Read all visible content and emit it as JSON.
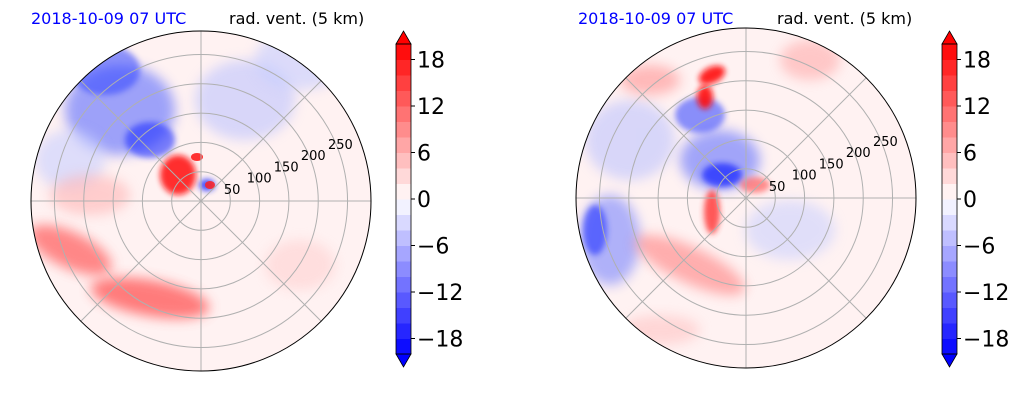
{
  "figure": {
    "panels": [
      {
        "time_label": "2018-10-09 07 UTC",
        "field_label": "rad. vent. (5 km)",
        "colorbar_ticks": [
          "18",
          "12",
          "6",
          "0",
          "−6",
          "−12",
          "−18"
        ]
      },
      {
        "time_label": "2018-10-09 07 UTC",
        "field_label": "rad. vent. (5 km)",
        "colorbar_ticks": [
          "18",
          "12",
          "6",
          "0",
          "−6",
          "−12",
          "−18"
        ]
      }
    ]
  },
  "colors": {
    "time_label": "#0000ff",
    "positive": "#ff0000",
    "negative": "#0000ff",
    "neutral": "#ffffff",
    "grid": "#b0b0b0"
  },
  "chart_data": [
    {
      "type": "heatmap",
      "projection": "polar",
      "title_left": "2018-10-09 07 UTC",
      "title_right": "rad. vent. (5 km)",
      "radial_ticks": [
        50,
        100,
        150,
        200,
        250
      ],
      "radial_max": 290,
      "angular_gridlines_deg": [
        0,
        45,
        90,
        135,
        180,
        225,
        270,
        315
      ],
      "colorbar": {
        "min": -20,
        "max": 20,
        "levels_step": 2,
        "ticks": [
          -18,
          -12,
          -6,
          0,
          6,
          12,
          18
        ],
        "extend": "both",
        "colormap": "bwr"
      },
      "features": [
        {
          "sign": "positive",
          "r": 28,
          "theta": 120,
          "magnitude": 16
        },
        {
          "sign": "negative",
          "r": 20,
          "theta": 20,
          "magnitude": -12
        },
        {
          "sign": "negative",
          "r": 150,
          "theta": 125,
          "magnitude": -10
        },
        {
          "sign": "negative",
          "r": 230,
          "theta": 110,
          "magnitude": -8
        },
        {
          "sign": "positive",
          "r": 220,
          "theta": 215,
          "magnitude": 12
        }
      ]
    },
    {
      "type": "heatmap",
      "projection": "polar",
      "title_left": "2018-10-09 07 UTC",
      "title_right": "rad. vent. (5 km)",
      "radial_ticks": [
        50,
        100,
        150,
        200,
        250
      ],
      "radial_max": 290,
      "angular_gridlines_deg": [
        0,
        45,
        90,
        135,
        180,
        225,
        270,
        315
      ],
      "colorbar": {
        "min": -20,
        "max": 20,
        "levels_step": 2,
        "ticks": [
          -18,
          -12,
          -6,
          0,
          6,
          12,
          18
        ],
        "extend": "both",
        "colormap": "bwr"
      },
      "features": [
        {
          "sign": "positive",
          "r": 200,
          "theta": 105,
          "magnitude": 18
        },
        {
          "sign": "negative",
          "r": 45,
          "theta": 150,
          "magnitude": -14
        },
        {
          "sign": "positive",
          "r": 60,
          "theta": 235,
          "magnitude": 12
        },
        {
          "sign": "positive",
          "r": 30,
          "theta": 10,
          "magnitude": 8
        },
        {
          "sign": "negative",
          "r": 230,
          "theta": 190,
          "magnitude": -10
        },
        {
          "sign": "positive",
          "r": 180,
          "theta": 225,
          "magnitude": 8
        }
      ]
    }
  ]
}
